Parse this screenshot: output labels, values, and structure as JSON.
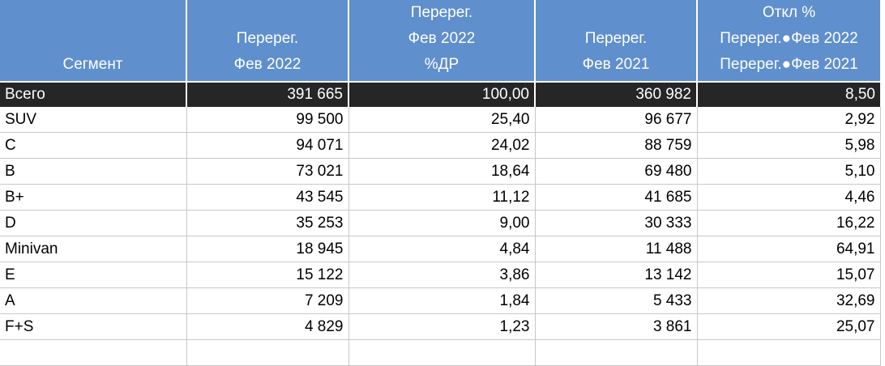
{
  "table": {
    "headers": [
      {
        "lines": [
          "Сегмент"
        ]
      },
      {
        "lines": [
          "Перерег.",
          "Фев 2022"
        ]
      },
      {
        "lines": [
          "Перерег.",
          "Фев 2022",
          "%ДР"
        ]
      },
      {
        "lines": [
          "Перерег.",
          "Фев 2021"
        ]
      },
      {
        "lines": [
          "Откл %",
          "Перерег.●Фев 2022",
          "Перерег.●Фев 2021"
        ]
      }
    ],
    "total": {
      "segment": "Всего",
      "rereg_feb_2022": "391 665",
      "share_pct": "100,00",
      "rereg_feb_2021": "360 982",
      "deviation_pct": "8,50"
    },
    "rows": [
      {
        "segment": "SUV",
        "rereg_feb_2022": "99 500",
        "share_pct": "25,40",
        "rereg_feb_2021": "96 677",
        "deviation_pct": "2,92"
      },
      {
        "segment": "C",
        "rereg_feb_2022": "94 071",
        "share_pct": "24,02",
        "rereg_feb_2021": "88 759",
        "deviation_pct": "5,98"
      },
      {
        "segment": "B",
        "rereg_feb_2022": "73 021",
        "share_pct": "18,64",
        "rereg_feb_2021": "69 480",
        "deviation_pct": "5,10"
      },
      {
        "segment": "B+",
        "rereg_feb_2022": "43 545",
        "share_pct": "11,12",
        "rereg_feb_2021": "41 685",
        "deviation_pct": "4,46"
      },
      {
        "segment": "D",
        "rereg_feb_2022": "35 253",
        "share_pct": "9,00",
        "rereg_feb_2021": "30 333",
        "deviation_pct": "16,22"
      },
      {
        "segment": "Minivan",
        "rereg_feb_2022": "18 945",
        "share_pct": "4,84",
        "rereg_feb_2021": "11 488",
        "deviation_pct": "64,91"
      },
      {
        "segment": "E",
        "rereg_feb_2022": "15 122",
        "share_pct": "3,86",
        "rereg_feb_2021": "13 142",
        "deviation_pct": "15,07"
      },
      {
        "segment": "A",
        "rereg_feb_2022": "7 209",
        "share_pct": "1,84",
        "rereg_feb_2021": "5 433",
        "deviation_pct": "32,69"
      },
      {
        "segment": "F+S",
        "rereg_feb_2022": "4 829",
        "share_pct": "1,23",
        "rereg_feb_2021": "3 861",
        "deviation_pct": "25,07"
      }
    ]
  },
  "colors": {
    "header_bg": "#5f8fcd",
    "total_bg": "#262626",
    "grid_line": "#c8c8c8"
  }
}
